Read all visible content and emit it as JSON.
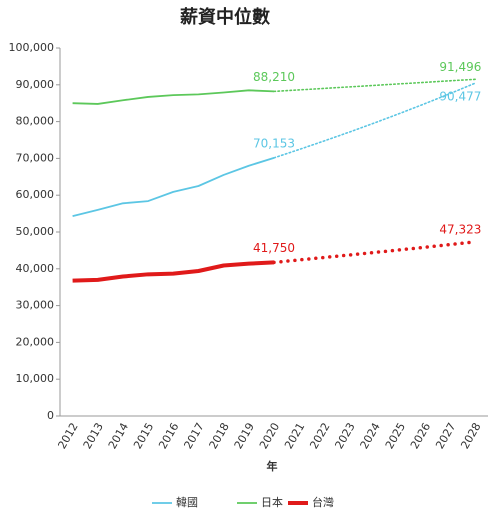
{
  "chart_data": {
    "type": "line",
    "title": "薪資中位數",
    "x_label": "年",
    "categories": [
      "2012",
      "2013",
      "2014",
      "2015",
      "2016",
      "2017",
      "2018",
      "2019",
      "2020",
      "2021",
      "2022",
      "2023",
      "2024",
      "2025",
      "2026",
      "2027",
      "2028"
    ],
    "ylim": [
      0,
      100000
    ],
    "yticks": [
      0,
      {
        "value": 10000,
        "label": "10,000"
      },
      {
        "value": 20000,
        "label": "20,000"
      },
      {
        "value": 30000,
        "label": "30,000"
      },
      {
        "value": 40000,
        "label": "40,000"
      },
      {
        "value": 50000,
        "label": "50,000"
      },
      {
        "value": 60000,
        "label": "60,000"
      },
      {
        "value": 70000,
        "label": "70,000"
      },
      {
        "value": 80000,
        "label": "80,000"
      },
      {
        "value": 90000,
        "label": "90,000"
      },
      {
        "value": 100000,
        "label": "100,000"
      }
    ],
    "grid": false,
    "legend": "bottom",
    "series": [
      {
        "name": "韓國",
        "color": "#5cc6e4",
        "values": [
          54300,
          56000,
          57800,
          58400,
          60900,
          62500,
          65500,
          68000,
          70153,
          null,
          null,
          null,
          null,
          null,
          null,
          null,
          null
        ],
        "value_labels": [
          null,
          null,
          null,
          null,
          null,
          null,
          null,
          null,
          "70,153",
          null,
          null,
          null,
          null,
          null,
          null,
          null,
          null
        ],
        "forecast": [
          null,
          null,
          null,
          null,
          null,
          null,
          null,
          null,
          70153,
          72420,
          74760,
          77170,
          79660,
          82230,
          84890,
          87630,
          90477
        ],
        "forecast_labels": [
          null,
          null,
          null,
          null,
          null,
          null,
          null,
          null,
          null,
          null,
          null,
          null,
          null,
          null,
          null,
          null,
          "90,477"
        ]
      },
      {
        "name": "日本",
        "color": "#5cc85a",
        "values": [
          85000,
          84800,
          85800,
          86700,
          87200,
          87400,
          87900,
          88500,
          88210,
          null,
          null,
          null,
          null,
          null,
          null,
          null,
          null
        ],
        "value_labels": [
          null,
          null,
          null,
          null,
          null,
          null,
          null,
          null,
          "88,210",
          null,
          null,
          null,
          null,
          null,
          null,
          null,
          null
        ],
        "forecast": [
          null,
          null,
          null,
          null,
          null,
          null,
          null,
          null,
          88210,
          88616,
          89024,
          89434,
          89846,
          90259,
          90675,
          91092,
          91496
        ],
        "forecast_labels": [
          null,
          null,
          null,
          null,
          null,
          null,
          null,
          null,
          null,
          null,
          null,
          null,
          null,
          null,
          null,
          null,
          "91,496"
        ]
      },
      {
        "name": "台灣",
        "color": "#e01a1a",
        "values": [
          36800,
          37000,
          37900,
          38500,
          38700,
          39400,
          40900,
          41400,
          41750,
          null,
          null,
          null,
          null,
          null,
          null,
          null,
          null
        ],
        "value_labels": [
          null,
          null,
          null,
          null,
          null,
          null,
          null,
          null,
          "41,750",
          null,
          null,
          null,
          null,
          null,
          null,
          null,
          null
        ],
        "forecast": [
          null,
          null,
          null,
          null,
          null,
          null,
          null,
          null,
          41750,
          42410,
          43080,
          43760,
          44450,
          45150,
          45860,
          46590,
          47323
        ],
        "forecast_labels": [
          null,
          null,
          null,
          null,
          null,
          null,
          null,
          null,
          null,
          null,
          null,
          null,
          null,
          null,
          null,
          null,
          "47,323"
        ]
      }
    ]
  }
}
